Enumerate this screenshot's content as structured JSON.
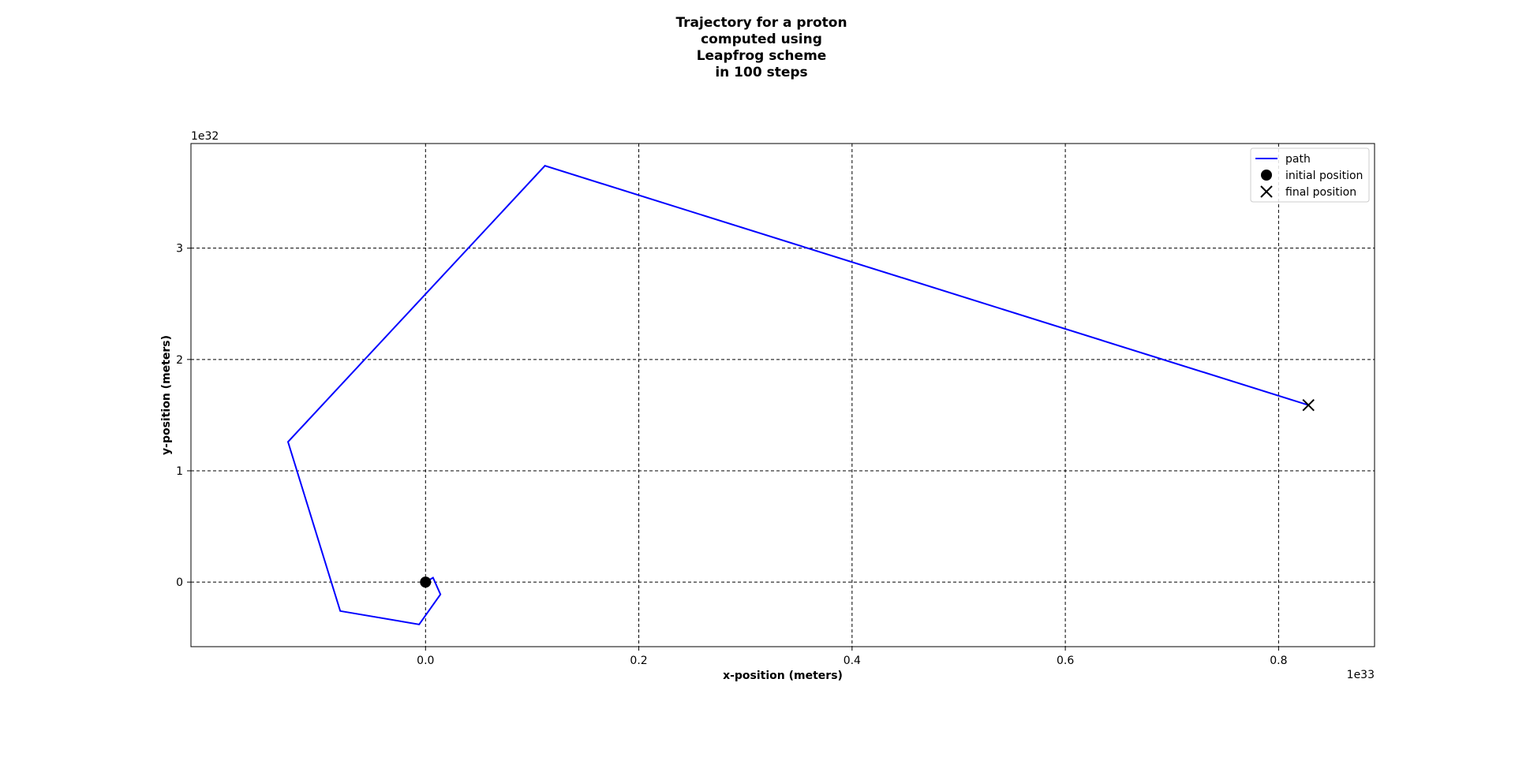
{
  "chart_data": {
    "type": "line",
    "title_lines": [
      "Trajectory for a proton",
      "computed using",
      "Leapfrog scheme",
      "in 100 steps"
    ],
    "xlabel": "x-position (meters)",
    "ylabel": "y-position (meters)",
    "x_offset_text": "1e33",
    "y_offset_text": "1e32",
    "xlim": [
      -2.2e+32,
      8.9e+32
    ],
    "ylim": [
      -5.8e+31,
      3.94e+32
    ],
    "x_ticks": [
      0.0,
      2e+32,
      4e+32,
      6e+32,
      8e+32
    ],
    "x_tick_labels": [
      "0.0",
      "0.2",
      "0.4",
      "0.6",
      "0.8"
    ],
    "y_ticks": [
      0,
      1e+32,
      2e+32,
      3e+32
    ],
    "y_tick_labels": [
      "0",
      "1",
      "2",
      "3"
    ],
    "grid": true,
    "legend_placement": "top-right",
    "series": [
      {
        "name": "path",
        "color": "#0000ff",
        "x": [
          0,
          7e+30,
          1.4e+31,
          -6e+30,
          -8e+31,
          -1.29e+32,
          1.12e+32,
          8.28e+32
        ],
        "y": [
          0,
          4e+30,
          -1.1e+31,
          -3.8e+31,
          -2.6e+31,
          1.26e+32,
          3.74e+32,
          1.59e+32
        ]
      }
    ],
    "markers": [
      {
        "name": "initial position",
        "shape": "circle",
        "color": "#000000",
        "x": 0,
        "y": 0
      },
      {
        "name": "final position",
        "shape": "x",
        "color": "#000000",
        "x": 8.28e+32,
        "y": 1.59e+32
      }
    ]
  }
}
